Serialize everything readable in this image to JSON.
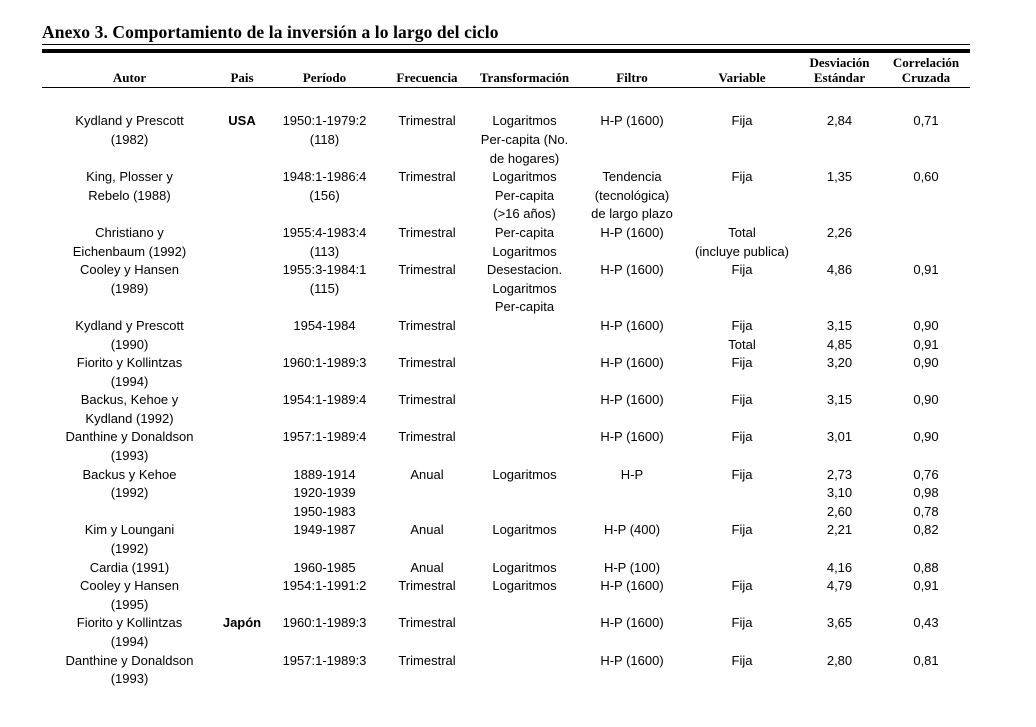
{
  "title": "Anexo 3. Comportamiento de la inversión a lo largo del ciclo",
  "table": {
    "columns": [
      {
        "id": "autor",
        "header_lines": [
          "",
          "Autor"
        ]
      },
      {
        "id": "pais",
        "header_lines": [
          "",
          "Pais"
        ]
      },
      {
        "id": "periodo",
        "header_lines": [
          "",
          "Período"
        ]
      },
      {
        "id": "frecuencia",
        "header_lines": [
          "",
          "Frecuencia"
        ]
      },
      {
        "id": "transformacion",
        "header_lines": [
          "",
          "Transformación"
        ]
      },
      {
        "id": "filtro",
        "header_lines": [
          "",
          "Filtro"
        ]
      },
      {
        "id": "variable",
        "header_lines": [
          "",
          "Variable"
        ]
      },
      {
        "id": "desviacion",
        "header_lines": [
          "Desviación",
          "Estándar"
        ]
      },
      {
        "id": "correlacion",
        "header_lines": [
          "Correlación",
          "Cruzada"
        ]
      }
    ],
    "rows": [
      {
        "autor": [
          "Kydland y Prescott",
          "(1982)"
        ],
        "pais": [
          "USA"
        ],
        "periodo": [
          "1950:1-1979:2",
          "(118)"
        ],
        "frecuencia": [
          "Trimestral"
        ],
        "transformacion": [
          "Logaritmos",
          "Per-capita (No.",
          "de hogares)"
        ],
        "filtro": [
          "H-P (1600)"
        ],
        "variable": [
          "Fija"
        ],
        "desviacion": [
          "2,84"
        ],
        "correlacion": [
          "0,71"
        ]
      },
      {
        "autor": [
          "King, Plosser y",
          "Rebelo (1988)"
        ],
        "periodo": [
          "1948:1-1986:4",
          "(156)"
        ],
        "frecuencia": [
          "Trimestral"
        ],
        "transformacion": [
          "Logaritmos",
          "Per-capita",
          "(>16 años)"
        ],
        "filtro": [
          "Tendencia",
          "(tecnológica)",
          "de largo plazo"
        ],
        "variable": [
          "Fija"
        ],
        "desviacion": [
          "1,35"
        ],
        "correlacion": [
          "0,60"
        ]
      },
      {
        "autor": [
          "Christiano y",
          "Eichenbaum (1992)"
        ],
        "periodo": [
          "1955:4-1983:4",
          "(113)"
        ],
        "frecuencia": [
          "Trimestral"
        ],
        "transformacion": [
          "Per-capita",
          "Logaritmos"
        ],
        "filtro": [
          "H-P (1600)"
        ],
        "variable": [
          "Total",
          "(incluye publica)"
        ],
        "desviacion": [
          "2,26"
        ]
      },
      {
        "autor": [
          "Cooley y Hansen",
          "(1989)"
        ],
        "periodo": [
          "1955:3-1984:1",
          "(115)"
        ],
        "frecuencia": [
          "Trimestral"
        ],
        "transformacion": [
          "Desestacion.",
          "Logaritmos",
          "Per-capita"
        ],
        "filtro": [
          "H-P (1600)"
        ],
        "variable": [
          "Fija"
        ],
        "desviacion": [
          "4,86"
        ],
        "correlacion": [
          "0,91"
        ]
      },
      {
        "autor": [
          "Kydland y Prescott",
          "(1990)"
        ],
        "periodo": [
          "1954-1984"
        ],
        "frecuencia": [
          "Trimestral"
        ],
        "filtro": [
          "H-P (1600)"
        ],
        "variable": [
          "Fija",
          "Total"
        ],
        "desviacion": [
          "3,15",
          "4,85"
        ],
        "correlacion": [
          "0,90",
          "0,91"
        ]
      },
      {
        "autor": [
          "Fiorito y Kollintzas",
          "(1994)"
        ],
        "periodo": [
          "1960:1-1989:3"
        ],
        "frecuencia": [
          "Trimestral"
        ],
        "filtro": [
          "H-P (1600)"
        ],
        "variable": [
          "Fija"
        ],
        "desviacion": [
          "3,20"
        ],
        "correlacion": [
          "0,90"
        ]
      },
      {
        "autor": [
          "Backus, Kehoe y",
          "Kydland (1992)"
        ],
        "periodo": [
          "1954:1-1989:4"
        ],
        "frecuencia": [
          "Trimestral"
        ],
        "filtro": [
          "H-P (1600)"
        ],
        "variable": [
          "Fija"
        ],
        "desviacion": [
          "3,15"
        ],
        "correlacion": [
          "0,90"
        ]
      },
      {
        "autor": [
          "Danthine y Donaldson",
          "(1993)"
        ],
        "periodo": [
          "1957:1-1989:4"
        ],
        "frecuencia": [
          "Trimestral"
        ],
        "filtro": [
          "H-P (1600)"
        ],
        "variable": [
          "Fija"
        ],
        "desviacion": [
          "3,01"
        ],
        "correlacion": [
          "0,90"
        ]
      },
      {
        "autor": [
          "Backus y Kehoe",
          "(1992)"
        ],
        "periodo": [
          "1889-1914",
          "1920-1939",
          "1950-1983"
        ],
        "frecuencia": [
          "Anual"
        ],
        "transformacion": [
          "Logaritmos"
        ],
        "filtro": [
          "H-P"
        ],
        "variable": [
          "Fija"
        ],
        "desviacion": [
          "2,73",
          "3,10",
          "2,60"
        ],
        "correlacion": [
          "0,76",
          "0,98",
          "0,78"
        ]
      },
      {
        "autor": [
          "Kim y Loungani",
          "(1992)"
        ],
        "periodo": [
          "1949-1987"
        ],
        "frecuencia": [
          "Anual"
        ],
        "transformacion": [
          "Logaritmos"
        ],
        "filtro": [
          "H-P (400)"
        ],
        "variable": [
          "Fija"
        ],
        "desviacion": [
          "2,21"
        ],
        "correlacion": [
          "0,82"
        ]
      },
      {
        "autor": [
          "Cardia (1991)"
        ],
        "periodo": [
          "1960-1985"
        ],
        "frecuencia": [
          "Anual"
        ],
        "transformacion": [
          "Logaritmos"
        ],
        "filtro": [
          "H-P (100)"
        ],
        "desviacion": [
          "4,16"
        ],
        "correlacion": [
          "0,88"
        ]
      },
      {
        "autor": [
          "Cooley y Hansen",
          "(1995)"
        ],
        "periodo": [
          "1954:1-1991:2"
        ],
        "frecuencia": [
          "Trimestral"
        ],
        "transformacion": [
          "Logaritmos"
        ],
        "filtro": [
          "H-P (1600)"
        ],
        "variable": [
          "Fija"
        ],
        "desviacion": [
          "4,79"
        ],
        "correlacion": [
          "0,91"
        ]
      },
      {
        "autor": [
          "Fiorito y Kollintzas",
          "(1994)"
        ],
        "pais": [
          "Japón"
        ],
        "periodo": [
          "1960:1-1989:3"
        ],
        "frecuencia": [
          "Trimestral"
        ],
        "filtro": [
          "H-P (1600)"
        ],
        "variable": [
          "Fija"
        ],
        "desviacion": [
          "3,65"
        ],
        "correlacion": [
          "0,43"
        ]
      },
      {
        "autor": [
          "Danthine y Donaldson",
          "(1993)"
        ],
        "periodo": [
          "1957:1-1989:3"
        ],
        "frecuencia": [
          "Trimestral"
        ],
        "filtro": [
          "H-P (1600)"
        ],
        "variable": [
          "Fija"
        ],
        "desviacion": [
          "2,80"
        ],
        "correlacion": [
          "0,81"
        ]
      }
    ]
  }
}
